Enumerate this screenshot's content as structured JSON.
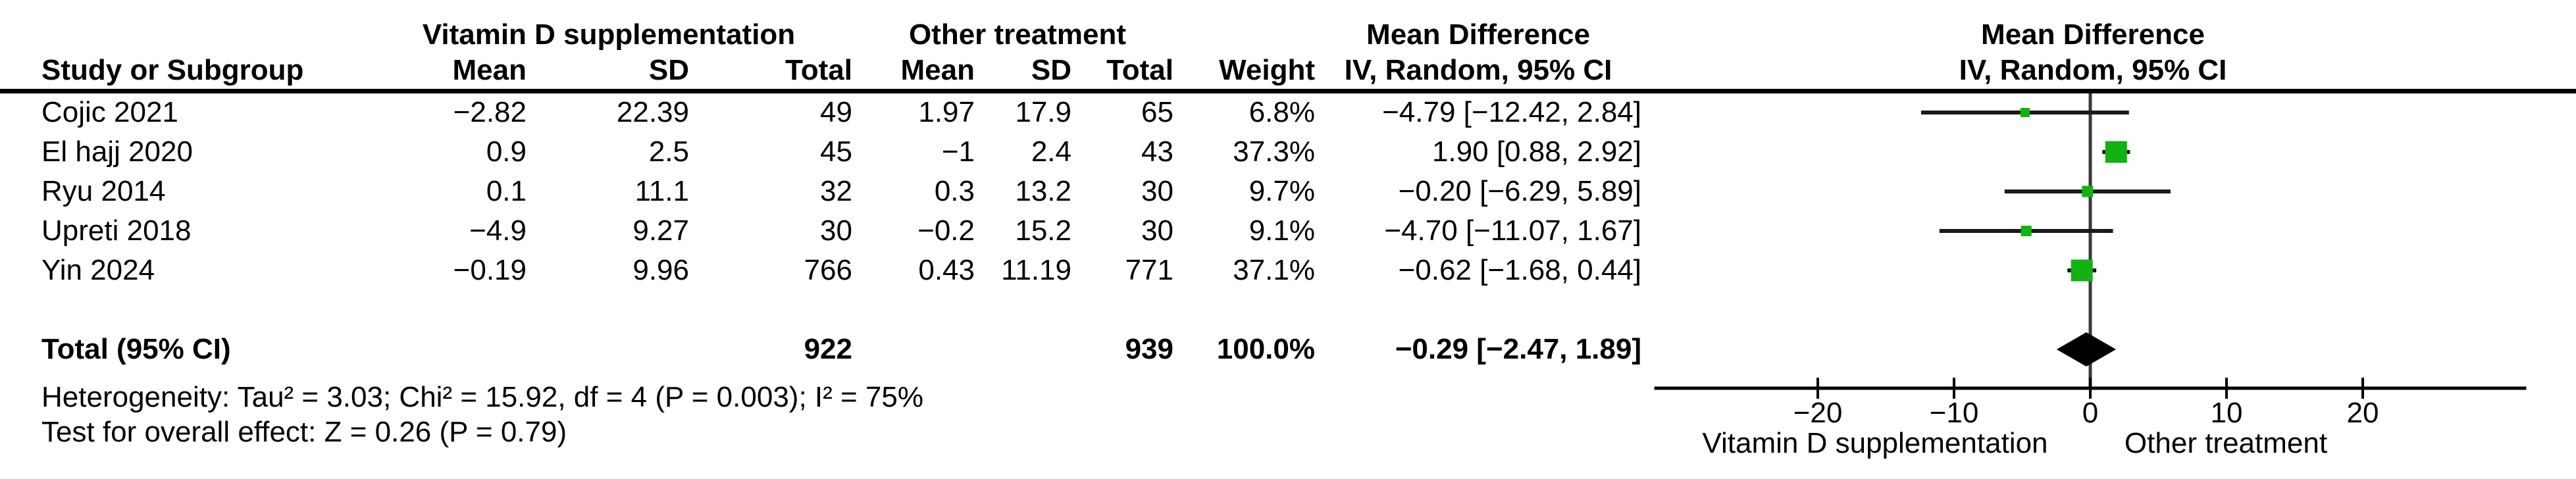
{
  "figure_type": "Forest plot (meta-analysis, RevMan style)",
  "colors": {
    "marker_green": "#12b212",
    "line_black": "#1a1a1a",
    "zero_line_gray": "#3a3a3a",
    "text": "#000000",
    "background": "#ffffff"
  },
  "header": {
    "group_experimental": "Vitamin D supplementation",
    "group_control": "Other treatment",
    "effect_text_col": "Mean Difference",
    "effect_plot_col": "Mean Difference",
    "col_study": "Study or Subgroup",
    "col_mean_exp": "Mean",
    "col_sd_exp": "SD",
    "col_total_exp": "Total",
    "col_mean_ctl": "Mean",
    "col_sd_ctl": "SD",
    "col_total_ctl": "Total",
    "col_weight": "Weight",
    "col_ci_text": "IV, Random, 95% CI",
    "col_ci_plot": "IV, Random, 95% CI"
  },
  "table": {
    "rows": [
      {
        "study": "Cojic 2021",
        "e_mean": "−2.82",
        "e_sd": "22.39",
        "e_total": "49",
        "c_mean": "1.97",
        "c_sd": "17.9",
        "c_total": "65",
        "weight": "6.8%",
        "ci": "−4.79 [−12.42, 2.84]"
      },
      {
        "study": "El hajj 2020",
        "e_mean": "0.9",
        "e_sd": "2.5",
        "e_total": "45",
        "c_mean": "−1",
        "c_sd": "2.4",
        "c_total": "43",
        "weight": "37.3%",
        "ci": "1.90 [0.88, 2.92]"
      },
      {
        "study": "Ryu 2014",
        "e_mean": "0.1",
        "e_sd": "11.1",
        "e_total": "32",
        "c_mean": "0.3",
        "c_sd": "13.2",
        "c_total": "30",
        "weight": "9.7%",
        "ci": "−0.20 [−6.29, 5.89]"
      },
      {
        "study": "Upreti 2018",
        "e_mean": "−4.9",
        "e_sd": "9.27",
        "e_total": "30",
        "c_mean": "−0.2",
        "c_sd": "15.2",
        "c_total": "30",
        "weight": "9.1%",
        "ci": "−4.70 [−11.07, 1.67]"
      },
      {
        "study": "Yin 2024",
        "e_mean": "−0.19",
        "e_sd": "9.96",
        "e_total": "766",
        "c_mean": "0.43",
        "c_sd": "11.19",
        "c_total": "771",
        "weight": "37.1%",
        "ci": "−0.62 [−1.68, 0.44]"
      }
    ],
    "total_row": {
      "study": "Total (95% CI)",
      "e_total": "922",
      "c_total": "939",
      "weight": "100.0%",
      "ci": "−0.29 [−2.47, 1.89]"
    }
  },
  "footer": {
    "heterogeneity": "Heterogeneity: Tau² = 3.03; Chi² = 15.92, df = 4 (P = 0.003); I² = 75%",
    "overall_effect": "Test for overall effect: Z = 0.26 (P = 0.79)"
  },
  "chart_data": {
    "type": "scatter",
    "subtype": "forest",
    "title": "Mean Difference",
    "method": "IV, Random, 95% CI",
    "x_axis": {
      "ticks": [
        -20,
        -10,
        0,
        10,
        20
      ],
      "range": [
        -32,
        32
      ],
      "label_left": "Vitamin D supplementation",
      "label_right": "Other treatment",
      "grid": false
    },
    "studies": [
      {
        "name": "Cojic 2021",
        "estimate": -4.79,
        "ci_low": -12.42,
        "ci_high": 2.84,
        "weight_pct": 6.8
      },
      {
        "name": "El hajj 2020",
        "estimate": 1.9,
        "ci_low": 0.88,
        "ci_high": 2.92,
        "weight_pct": 37.3
      },
      {
        "name": "Ryu 2014",
        "estimate": -0.2,
        "ci_low": -6.29,
        "ci_high": 5.89,
        "weight_pct": 9.7
      },
      {
        "name": "Upreti 2018",
        "estimate": -4.7,
        "ci_low": -11.07,
        "ci_high": 1.67,
        "weight_pct": 9.1
      },
      {
        "name": "Yin 2024",
        "estimate": -0.62,
        "ci_low": -1.68,
        "ci_high": 0.44,
        "weight_pct": 37.1
      }
    ],
    "total": {
      "name": "Total (95% CI)",
      "estimate": -0.29,
      "ci_low": -2.47,
      "ci_high": 1.89,
      "weight_pct": 100.0,
      "marker": "diamond"
    }
  }
}
